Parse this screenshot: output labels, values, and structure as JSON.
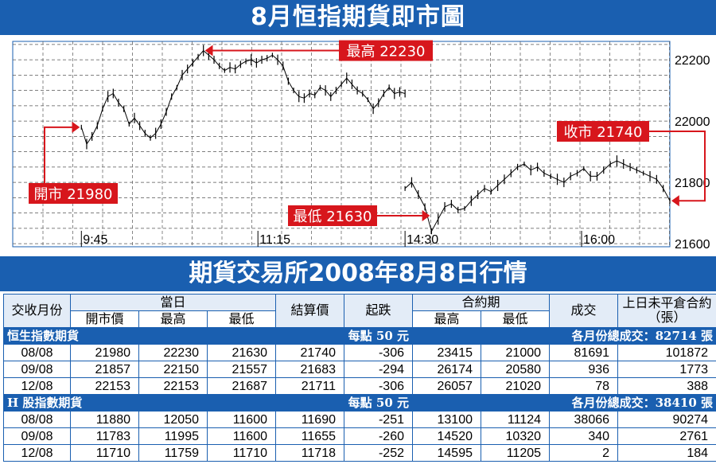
{
  "chart_title": "8月恒指期貨即市圖",
  "chart_data": {
    "type": "line",
    "title": "8月恒指期貨即市圖",
    "x_ticks": [
      "9:45",
      "11:15",
      "14:30",
      "16:00"
    ],
    "y_ticks": [
      22200,
      22000,
      21800,
      21600
    ],
    "ylim": [
      21590,
      22260
    ],
    "grid": true,
    "series": [
      {
        "sessions": [
          {
            "start": "9:45",
            "end": "12:30",
            "values": [
              21980,
              21925,
              21950,
              21985,
              22040,
              22080,
              22090,
              22060,
              22040,
              21990,
              22010,
              21985,
              21960,
              21945,
              21960,
              21990,
              22030,
              22080,
              22110,
              22150,
              22170,
              22190,
              22210,
              22230,
              22215,
              22200,
              22180,
              22165,
              22175,
              22170,
              22185,
              22195,
              22200,
              22190,
              22200,
              22205,
              22215,
              22200,
              22180,
              22130,
              22100,
              22080,
              22075,
              22090,
              22085,
              22110,
              22100,
              22080,
              22100,
              22120,
              22140,
              22120,
              22100,
              22090,
              22070,
              22040,
              22060,
              22090,
              22110,
              22090,
              22095,
              22090
            ]
          },
          {
            "start": "14:30",
            "end": "16:45",
            "values": [
              21780,
              21800,
              21760,
              21720,
              21640,
              21680,
              21720,
              21730,
              21710,
              21715,
              21740,
              21760,
              21780,
              21770,
              21790,
              21810,
              21830,
              21850,
              21860,
              21840,
              21850,
              21830,
              21820,
              21810,
              21800,
              21820,
              21830,
              21845,
              21820,
              21820,
              21840,
              21860,
              21870,
              21860,
              21850,
              21840,
              21830,
              21820,
              21810,
              21780,
              21740
            ]
          }
        ]
      }
    ],
    "annotations": [
      {
        "label": "最高 22230",
        "value": 22230
      },
      {
        "label": "開市 21980",
        "value": 21980
      },
      {
        "label": "最低 21630",
        "value": 21630
      },
      {
        "label": "收市 21740",
        "value": 21740
      }
    ]
  },
  "table_title": "期貨交易所2008年8月8日行情",
  "headers": {
    "month": "交收月份",
    "day": "當日",
    "open": "開市價",
    "high": "最高",
    "low": "最低",
    "settle": "結算價",
    "change": "起跌",
    "contract": "合約期",
    "c_high": "最高",
    "c_low": "最低",
    "volume": "成交",
    "oi": "上日未平倉合約（張）"
  },
  "sections": [
    {
      "name": "恒生指數期貨",
      "point": "每點 50 元",
      "total": "各月份總成交：82714 張",
      "rows": [
        [
          "08/08",
          "21980",
          "22230",
          "21630",
          "21740",
          "-306",
          "23415",
          "21000",
          "81691",
          "101872"
        ],
        [
          "09/08",
          "21857",
          "22150",
          "21557",
          "21683",
          "-294",
          "26174",
          "20580",
          "936",
          "1773"
        ],
        [
          "12/08",
          "22153",
          "22153",
          "21687",
          "21711",
          "-306",
          "26057",
          "21020",
          "78",
          "388"
        ]
      ]
    },
    {
      "name": "H 股指數期貨",
      "point": "每點 50 元",
      "total": "各月份總成交：38410 張",
      "rows": [
        [
          "08/08",
          "11880",
          "12050",
          "11600",
          "11690",
          "-251",
          "13100",
          "11124",
          "38066",
          "90274"
        ],
        [
          "09/08",
          "11783",
          "11995",
          "11600",
          "11655",
          "-260",
          "14520",
          "10320",
          "340",
          "2761"
        ],
        [
          "12/08",
          "11710",
          "11759",
          "11710",
          "11718",
          "-252",
          "14595",
          "11205",
          "2",
          "184"
        ]
      ]
    }
  ],
  "colors": {
    "accent": "#1a5fb0",
    "label_red": "#d7161c",
    "header_bg": "#e3ecf7"
  }
}
